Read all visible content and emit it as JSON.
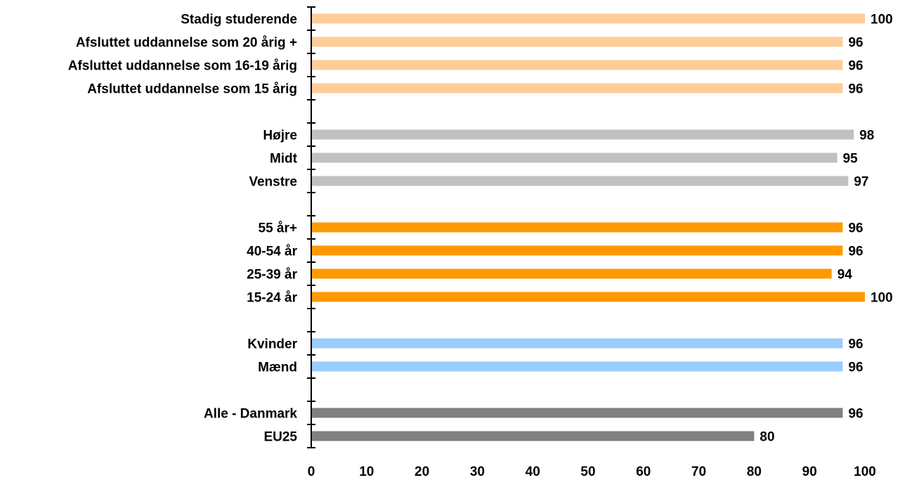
{
  "chart_data": {
    "type": "bar",
    "orientation": "horizontal",
    "title": "",
    "xlabel": "",
    "ylabel": "",
    "xlim": [
      0,
      100
    ],
    "x_ticks": [
      "0",
      "10",
      "20",
      "30",
      "40",
      "50",
      "60",
      "70",
      "80",
      "90",
      "100"
    ],
    "grid": false,
    "legend": "none",
    "categories": [
      {
        "label": "Stadig studerende",
        "value": 100,
        "value_label": "100",
        "color": "#ffcc99"
      },
      {
        "label": "Afsluttet uddannelse som 20 årig +",
        "value": 96,
        "value_label": "96",
        "color": "#ffcc99"
      },
      {
        "label": "Afsluttet uddannelse som 16-19 årig",
        "value": 96,
        "value_label": "96",
        "color": "#ffcc99"
      },
      {
        "label": "Afsluttet uddannelse som 15 årig",
        "value": 96,
        "value_label": "96",
        "color": "#ffcc99"
      },
      {
        "label": "",
        "value": null,
        "value_label": "",
        "color": ""
      },
      {
        "label": "Højre",
        "value": 98,
        "value_label": "98",
        "color": "#c0c0c0"
      },
      {
        "label": "Midt",
        "value": 95,
        "value_label": "95",
        "color": "#c0c0c0"
      },
      {
        "label": "Venstre",
        "value": 97,
        "value_label": "97",
        "color": "#c0c0c0"
      },
      {
        "label": "",
        "value": null,
        "value_label": "",
        "color": ""
      },
      {
        "label": "55 år+",
        "value": 96,
        "value_label": "96",
        "color": "#ff9900"
      },
      {
        "label": "40-54 år",
        "value": 96,
        "value_label": "96",
        "color": "#ff9900"
      },
      {
        "label": "25-39 år",
        "value": 94,
        "value_label": "94",
        "color": "#ff9900"
      },
      {
        "label": "15-24 år",
        "value": 100,
        "value_label": "100",
        "color": "#ff9900"
      },
      {
        "label": "",
        "value": null,
        "value_label": "",
        "color": ""
      },
      {
        "label": "Kvinder",
        "value": 96,
        "value_label": "96",
        "color": "#99ccff"
      },
      {
        "label": "Mænd",
        "value": 96,
        "value_label": "96",
        "color": "#99ccff"
      },
      {
        "label": "",
        "value": null,
        "value_label": "",
        "color": ""
      },
      {
        "label": "Alle - Danmark",
        "value": 96,
        "value_label": "96",
        "color": "#808080"
      },
      {
        "label": "EU25",
        "value": 80,
        "value_label": "80",
        "color": "#808080"
      }
    ]
  }
}
